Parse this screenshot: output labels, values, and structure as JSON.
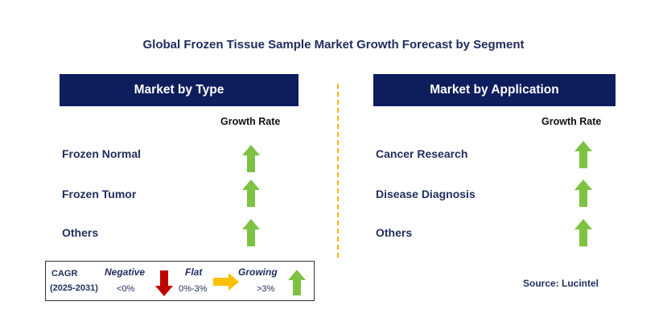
{
  "title": "Global Frozen Tissue Sample Market Growth Forecast by Segment",
  "left_panel": {
    "header": "Market by Type",
    "column_header": "Growth Rate",
    "rows": [
      {
        "label": "Frozen Normal",
        "trend": "growing"
      },
      {
        "label": "Frozen Tumor",
        "trend": "growing"
      },
      {
        "label": "Others",
        "trend": "growing"
      }
    ]
  },
  "right_panel": {
    "header": "Market by Application",
    "column_header": "Growth Rate",
    "rows": [
      {
        "label": "Cancer Research",
        "trend": "growing"
      },
      {
        "label": "Disease Diagnosis",
        "trend": "growing"
      },
      {
        "label": "Others",
        "trend": "growing"
      }
    ]
  },
  "legend": {
    "cagr_label": "CAGR",
    "period": "(2025-2031)",
    "negative": {
      "label": "Negative",
      "range": "<0%",
      "icon": "down-arrow-icon"
    },
    "flat": {
      "label": "Flat",
      "range": "0%-3%",
      "icon": "right-arrow-icon"
    },
    "growing": {
      "label": "Growing",
      "range": ">3%",
      "icon": "up-arrow-icon"
    }
  },
  "source": "Source: Lucintel",
  "colors": {
    "header_bg": "#0e1d5c",
    "text": "#1f2d5c",
    "growing": "#7dc242",
    "negative": "#c00000",
    "flat": "#ffc000",
    "divider": "#f2b40f"
  }
}
